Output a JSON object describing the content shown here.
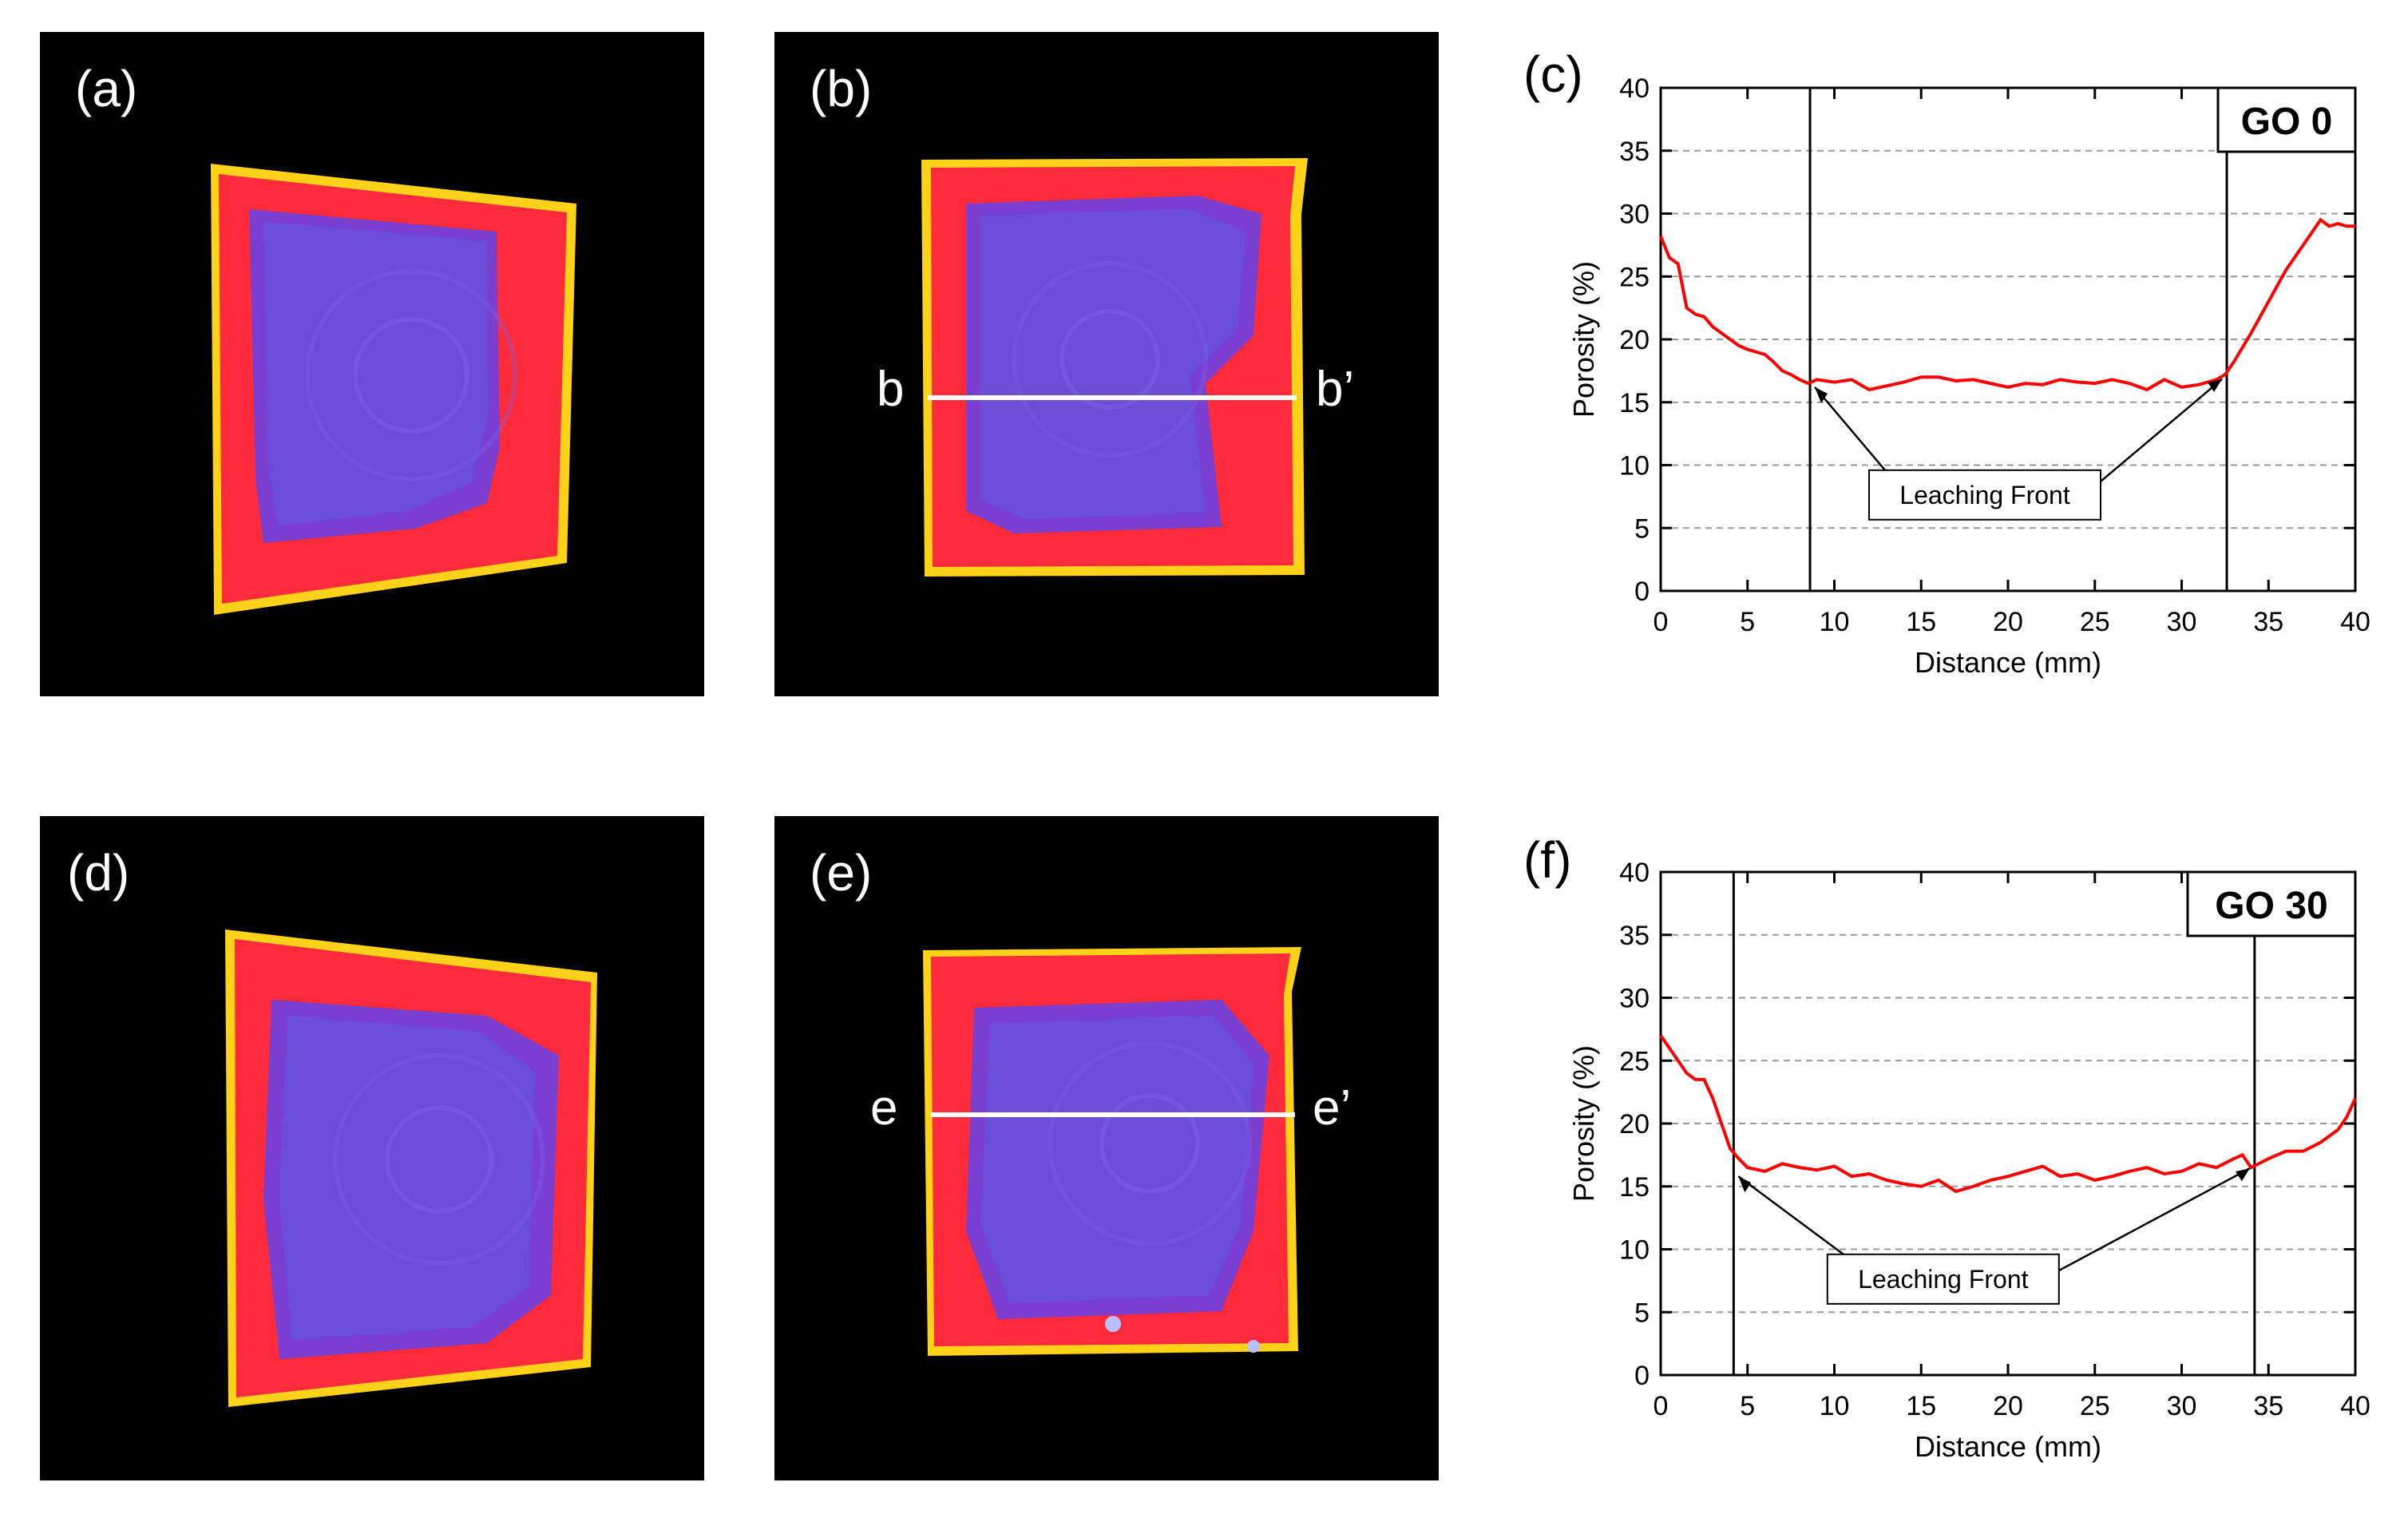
{
  "figure": {
    "panels": [
      {
        "id": "a",
        "label": "(a)"
      },
      {
        "id": "b",
        "label": "(b)",
        "line_left": "b",
        "line_right": "b’"
      },
      {
        "id": "d",
        "label": "(d)"
      },
      {
        "id": "e",
        "label": "(e)",
        "line_left": "e",
        "line_right": "e’"
      }
    ],
    "chart_labels": {
      "c": "(c)",
      "f": "(f)"
    },
    "colors": {
      "background": "#000000",
      "core": "#6a4fd6",
      "edge": "#ff2a3a",
      "rim": "#ffd21a",
      "curve": "#ff0000"
    }
  },
  "chart_data": [
    {
      "id": "c",
      "type": "line",
      "badge": "GO 0",
      "xlabel": "Distance (mm)",
      "ylabel": "Porosity (%)",
      "xlim": [
        0,
        40
      ],
      "ylim": [
        0,
        40
      ],
      "xticks": [
        0,
        5,
        10,
        15,
        20,
        25,
        30,
        35,
        40
      ],
      "yticks": [
        0,
        5,
        10,
        15,
        20,
        25,
        30,
        35,
        40
      ],
      "grid": "horizontal dashed",
      "fronts": [
        8.6,
        32.6
      ],
      "annotation": "Leaching Front",
      "series": [
        {
          "name": "GO 0",
          "x": [
            0,
            0.5,
            1,
            1.5,
            2,
            2.5,
            3,
            3.5,
            4,
            4.5,
            5,
            5.5,
            6,
            6.5,
            7,
            7.5,
            8,
            8.5,
            9,
            10,
            11,
            12,
            13,
            14,
            15,
            16,
            17,
            18,
            19,
            20,
            21,
            22,
            23,
            24,
            25,
            26,
            27,
            28,
            29,
            30,
            31,
            32,
            32.5,
            33,
            34,
            35,
            36,
            37,
            37.5,
            38,
            38.5,
            39,
            39.5,
            40
          ],
          "y": [
            28.2,
            26.5,
            26,
            22.5,
            22,
            21.8,
            21,
            20.5,
            20,
            19.5,
            19.2,
            19,
            18.8,
            18.2,
            17.5,
            17.2,
            16.8,
            16.5,
            16.8,
            16.6,
            16.8,
            16,
            16.3,
            16.6,
            17,
            17,
            16.7,
            16.8,
            16.5,
            16.2,
            16.5,
            16.4,
            16.8,
            16.6,
            16.5,
            16.8,
            16.5,
            16,
            16.8,
            16.2,
            16.4,
            16.8,
            17.2,
            18.2,
            20.5,
            23,
            25.5,
            27.5,
            28.5,
            29.5,
            29,
            29.2,
            29,
            29
          ]
        }
      ]
    },
    {
      "id": "f",
      "type": "line",
      "badge": "GO 30",
      "xlabel": "Distance (mm)",
      "ylabel": "Porosity (%)",
      "xlim": [
        0,
        40
      ],
      "ylim": [
        0,
        40
      ],
      "xticks": [
        0,
        5,
        10,
        15,
        20,
        25,
        30,
        35,
        40
      ],
      "yticks": [
        0,
        5,
        10,
        15,
        20,
        25,
        30,
        35,
        40
      ],
      "grid": "horizontal dashed",
      "fronts": [
        4.2,
        34.2
      ],
      "annotation": "Leaching Front",
      "series": [
        {
          "name": "GO 30",
          "x": [
            0,
            0.5,
            1,
            1.5,
            2,
            2.5,
            3,
            3.5,
            4,
            4.5,
            5,
            6,
            7,
            8,
            9,
            10,
            11,
            12,
            13,
            14,
            15,
            16,
            17,
            18,
            19,
            20,
            21,
            22,
            23,
            24,
            25,
            26,
            27,
            28,
            29,
            30,
            31,
            32,
            33,
            33.5,
            34,
            35,
            36,
            37,
            38,
            39,
            39.5,
            40
          ],
          "y": [
            27,
            26,
            25,
            24,
            23.5,
            23.5,
            22,
            20,
            18,
            17.2,
            16.5,
            16.2,
            16.8,
            16.5,
            16.3,
            16.6,
            15.8,
            16,
            15.5,
            15.2,
            15,
            15.5,
            14.6,
            15,
            15.5,
            15.8,
            16.2,
            16.6,
            15.8,
            16,
            15.5,
            15.8,
            16.2,
            16.5,
            16,
            16.2,
            16.8,
            16.5,
            17.2,
            17.5,
            16.5,
            17.2,
            17.8,
            17.8,
            18.5,
            19.5,
            20.5,
            22
          ]
        }
      ]
    }
  ]
}
